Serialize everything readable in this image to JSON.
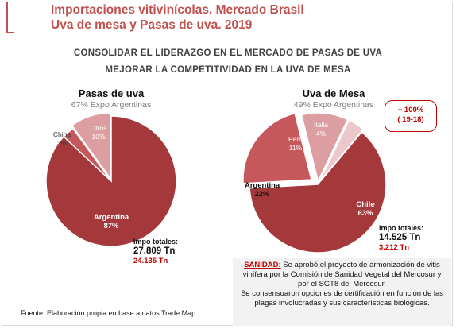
{
  "header": {
    "title_line1": "Importaciones vitivinícolas. Mercado Brasil",
    "title_line2": "Uva de mesa y Pasas de uva. 2019",
    "strap1": "CONSOLIDAR EL  LIDERAZGO EN EL MERCADO DE PASAS DE UVA",
    "strap2": "MEJORAR LA COMPETITIVIDAD EN LA UVA DE MESA"
  },
  "colors": {
    "dark": "#a5383a",
    "mid": "#c6585c",
    "light": "#dc9ea0",
    "lightest": "#ebc9ca",
    "accent": "#c00000"
  },
  "chart_data": [
    {
      "type": "pie",
      "title": "Pasas de uva",
      "subtitle": "67% Expo Argentinas",
      "slices": [
        {
          "label": "Argentina",
          "value": 87,
          "value_label": "87%"
        },
        {
          "label": "China",
          "value": 3,
          "value_label": "3%"
        },
        {
          "label": "Otros",
          "value": 10,
          "value_label": "10%"
        }
      ],
      "totals": {
        "label": "Impo totales:",
        "value": "27.809 Tn",
        "highlight": "24.135 Tn"
      }
    },
    {
      "type": "pie",
      "title": "Uva de Mesa",
      "subtitle": "49% Expo Argentinas",
      "slices": [
        {
          "label": "Chile",
          "value": 63,
          "value_label": "63%"
        },
        {
          "label": "Argentina",
          "value": 22,
          "value_label": "22%"
        },
        {
          "label": "Perú",
          "value": 11,
          "value_label": "11%"
        },
        {
          "label": "Italia",
          "value": 4,
          "value_label": "4%"
        }
      ],
      "totals": {
        "label": "Impo totales:",
        "value": "14.525 Tn",
        "highlight": "3.212 Tn"
      },
      "badge": {
        "line1": "+ 100%",
        "line2": "( 19-18)"
      }
    }
  ],
  "sanidad": {
    "label": "SANIDAD:",
    "text1": " Se aprobó el proyecto de armonización de vitis vinífera por la  Comisión de Sanidad Vegetal del Mercosur y por el SGT8 del Mercosur.",
    "text2": "Se consensuaron opciones de certificación en función de las plagas involucradas y sus características biológicas."
  },
  "source": "Fuente: Elaboración propia en base a datos Trade Map"
}
